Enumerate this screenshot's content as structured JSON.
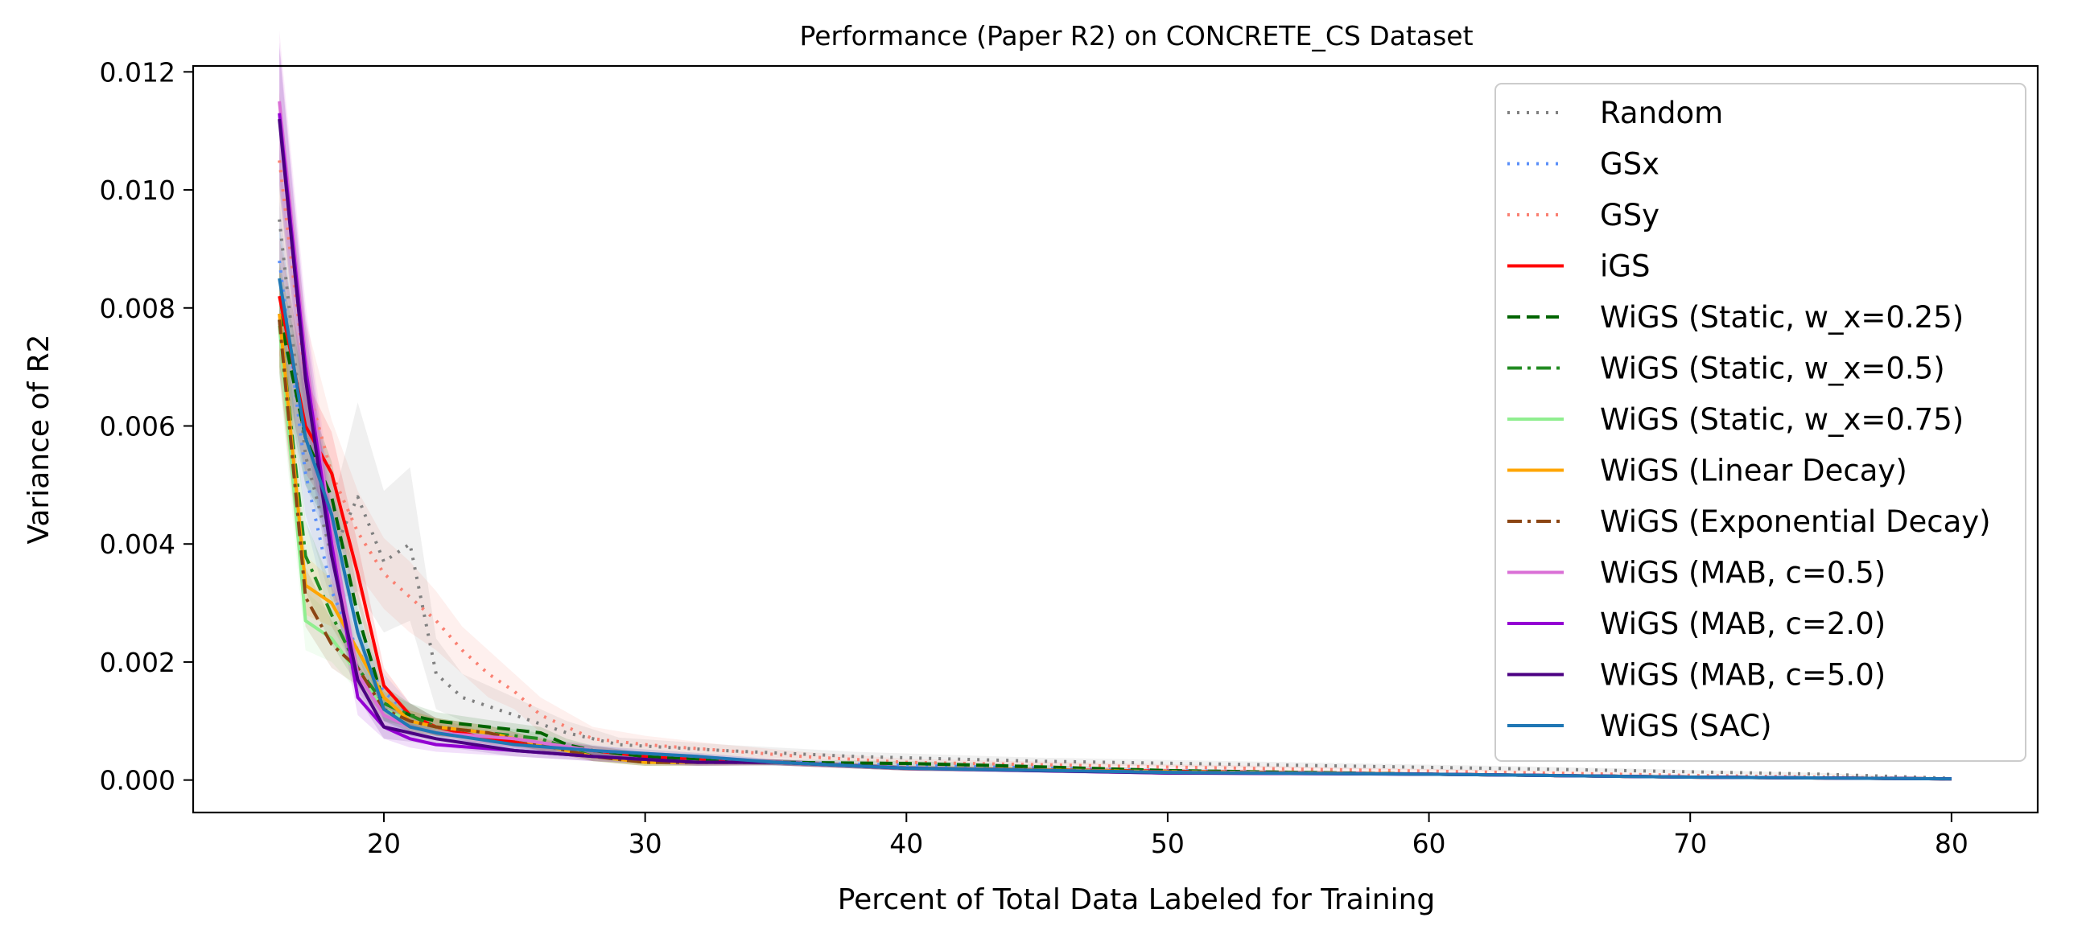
{
  "chart_data": {
    "type": "line",
    "title": "Performance (Paper R2) on CONCRETE_CS Dataset",
    "xlabel": "Percent of Total Data Labeled for Training",
    "ylabel": "Variance of R2",
    "xlim": [
      12.7,
      83.3
    ],
    "ylim": [
      -0.00055,
      0.0121
    ],
    "xticks": [
      20,
      30,
      40,
      50,
      60,
      70,
      80
    ],
    "yticks": [
      0.0,
      0.002,
      0.004,
      0.006,
      0.008,
      0.01,
      0.012
    ],
    "ytick_labels": [
      "0.000",
      "0.002",
      "0.004",
      "0.006",
      "0.008",
      "0.010",
      "0.012"
    ],
    "grid": false,
    "legend_position": "top-right",
    "shaded_bands": true,
    "series": [
      {
        "name": "Random",
        "color": "#808080",
        "dash": "dotted",
        "x": [
          16,
          17,
          18,
          19,
          20,
          21,
          22,
          23,
          25,
          27,
          29,
          33,
          38,
          45,
          55,
          65,
          75,
          80
        ],
        "y": [
          0.0095,
          0.0055,
          0.0038,
          0.0048,
          0.0037,
          0.004,
          0.0018,
          0.0014,
          0.0011,
          0.0008,
          0.0006,
          0.0005,
          0.0004,
          0.00032,
          0.00025,
          0.00018,
          0.0001,
          3e-05
        ],
        "band": [
          0.0012,
          0.001,
          0.0008,
          0.0016,
          0.0012,
          0.0013,
          0.0006,
          0.0004,
          0.0003,
          0.0002,
          0.00012,
          0.0001,
          8e-05,
          6e-05,
          5e-05,
          4e-05,
          2e-05,
          1e-05
        ]
      },
      {
        "name": "GSx",
        "color": "#5b8ff9",
        "dash": "dotted",
        "x": [
          16,
          17,
          18,
          19,
          20,
          21,
          22,
          24,
          26,
          28,
          30,
          35,
          40,
          50,
          60,
          70,
          80
        ],
        "y": [
          0.0088,
          0.0052,
          0.0032,
          0.0022,
          0.0015,
          0.0011,
          0.0009,
          0.0008,
          0.0006,
          0.0005,
          0.0004,
          0.0003,
          0.00025,
          0.00016,
          0.0001,
          5e-05,
          2e-05
        ],
        "band": [
          0.001,
          0.0008,
          0.0006,
          0.0004,
          0.0003,
          0.0002,
          0.00015,
          0.00012,
          0.0001,
          0.0001,
          8e-05,
          6e-05,
          5e-05,
          4e-05,
          3e-05,
          2e-05,
          1e-05
        ]
      },
      {
        "name": "GSy",
        "color": "#fa8072",
        "dash": "dotted",
        "x": [
          16,
          17,
          18,
          19,
          20,
          21,
          22,
          23,
          24,
          25,
          26,
          28,
          30,
          33,
          36,
          40,
          50,
          60,
          70,
          80
        ],
        "y": [
          0.0105,
          0.0068,
          0.0052,
          0.0042,
          0.0035,
          0.0031,
          0.0027,
          0.0022,
          0.0018,
          0.0015,
          0.0011,
          0.0007,
          0.0006,
          0.0005,
          0.0004,
          0.0003,
          0.00022,
          0.00015,
          8e-05,
          2e-05
        ],
        "band": [
          0.0012,
          0.001,
          0.0009,
          0.0007,
          0.0006,
          0.0006,
          0.0005,
          0.0004,
          0.0004,
          0.0003,
          0.0003,
          0.0002,
          0.00015,
          0.0001,
          8e-05,
          6e-05,
          5e-05,
          4e-05,
          2e-05,
          1e-05
        ]
      },
      {
        "name": "iGS",
        "color": "#ff0000",
        "dash": "solid",
        "x": [
          16,
          17,
          18,
          19,
          20,
          21,
          22,
          24,
          26,
          28,
          30,
          35,
          40,
          50,
          60,
          70,
          80
        ],
        "y": [
          0.0082,
          0.006,
          0.0052,
          0.0035,
          0.0016,
          0.0011,
          0.0009,
          0.0007,
          0.0006,
          0.0005,
          0.0004,
          0.0003,
          0.0002,
          0.00015,
          0.0001,
          5e-05,
          2e-05
        ],
        "band": [
          0.001,
          0.0008,
          0.0007,
          0.0005,
          0.0003,
          0.0002,
          0.00015,
          0.0001,
          0.0001,
          8e-05,
          6e-05,
          5e-05,
          4e-05,
          3e-05,
          2e-05,
          1e-05,
          1e-05
        ]
      },
      {
        "name": "WiGS (Static, w_x=0.25)",
        "color": "#006400",
        "dash": "dashed",
        "x": [
          16,
          17,
          18,
          19,
          20,
          21,
          22,
          24,
          26,
          27,
          28,
          30,
          35,
          40,
          43,
          50,
          60,
          70,
          80
        ],
        "y": [
          0.0079,
          0.0058,
          0.0048,
          0.0028,
          0.0013,
          0.0011,
          0.001,
          0.0009,
          0.0008,
          0.0006,
          0.0005,
          0.0004,
          0.0003,
          0.00028,
          0.00025,
          0.00016,
          0.0001,
          5e-05,
          2e-05
        ],
        "band": [
          0.0009,
          0.0008,
          0.0006,
          0.0004,
          0.0003,
          0.0002,
          0.00015,
          0.00012,
          0.0001,
          0.0001,
          8e-05,
          6e-05,
          5e-05,
          4e-05,
          4e-05,
          3e-05,
          2e-05,
          1e-05,
          1e-05
        ]
      },
      {
        "name": "WiGS (Static, w_x=0.5)",
        "color": "#228b22",
        "dash": "dashdot",
        "x": [
          16,
          17,
          18,
          19,
          20,
          21,
          22,
          24,
          26,
          28,
          30,
          35,
          40,
          50,
          60,
          70,
          80
        ],
        "y": [
          0.0078,
          0.0038,
          0.0028,
          0.0019,
          0.0013,
          0.0011,
          0.0009,
          0.0008,
          0.0007,
          0.0004,
          0.0003,
          0.0003,
          0.0002,
          0.00014,
          0.0001,
          5e-05,
          2e-05
        ],
        "band": [
          0.0009,
          0.0006,
          0.0005,
          0.0003,
          0.0002,
          0.0002,
          0.00015,
          0.00012,
          0.0001,
          8e-05,
          6e-05,
          5e-05,
          4e-05,
          3e-05,
          2e-05,
          1e-05,
          1e-05
        ]
      },
      {
        "name": "WiGS (Static, w_x=0.75)",
        "color": "#90ee90",
        "dash": "solid",
        "x": [
          16,
          17,
          18,
          19,
          20,
          21,
          22,
          24,
          26,
          28,
          30,
          35,
          40,
          50,
          60,
          70,
          80
        ],
        "y": [
          0.0077,
          0.0027,
          0.0024,
          0.0018,
          0.0012,
          0.001,
          0.0009,
          0.0008,
          0.0006,
          0.0004,
          0.0003,
          0.0003,
          0.0002,
          0.00014,
          0.0001,
          5e-05,
          2e-05
        ],
        "band": [
          0.0009,
          0.0005,
          0.0004,
          0.0003,
          0.0002,
          0.00018,
          0.00015,
          0.00012,
          0.0001,
          8e-05,
          6e-05,
          5e-05,
          4e-05,
          3e-05,
          2e-05,
          1e-05,
          1e-05
        ]
      },
      {
        "name": "WiGS (Linear Decay)",
        "color": "#ffa500",
        "dash": "solid",
        "x": [
          16,
          17,
          18,
          19,
          20,
          21,
          22,
          24,
          26,
          28,
          30,
          35,
          40,
          50,
          60,
          70,
          80
        ],
        "y": [
          0.0079,
          0.0033,
          0.003,
          0.0022,
          0.0014,
          0.001,
          0.0009,
          0.0008,
          0.0006,
          0.0004,
          0.0003,
          0.0003,
          0.0002,
          0.00014,
          0.0001,
          5e-05,
          2e-05
        ],
        "band": [
          0.0009,
          0.0005,
          0.0004,
          0.0003,
          0.0002,
          0.00018,
          0.00015,
          0.00012,
          0.0001,
          8e-05,
          6e-05,
          5e-05,
          4e-05,
          3e-05,
          2e-05,
          1e-05,
          1e-05
        ]
      },
      {
        "name": "WiGS (Exponential Decay)",
        "color": "#8b4513",
        "dash": "dashdot",
        "x": [
          16,
          17,
          18,
          19,
          20,
          21,
          22,
          24,
          26,
          28,
          30,
          35,
          40,
          50,
          60,
          70,
          80
        ],
        "y": [
          0.0078,
          0.0031,
          0.0023,
          0.0019,
          0.0012,
          0.001,
          0.0009,
          0.0008,
          0.0006,
          0.0004,
          0.0003,
          0.0003,
          0.0002,
          0.00014,
          0.0001,
          5e-05,
          2e-05
        ],
        "band": [
          0.0009,
          0.0005,
          0.0004,
          0.0003,
          0.0002,
          0.00018,
          0.00015,
          0.00012,
          0.0001,
          8e-05,
          6e-05,
          5e-05,
          4e-05,
          3e-05,
          2e-05,
          1e-05,
          1e-05
        ]
      },
      {
        "name": "WiGS (MAB, c=0.5)",
        "color": "#da70d6",
        "dash": "solid",
        "x": [
          16,
          17,
          18,
          19,
          20,
          21,
          22,
          25,
          28,
          32,
          35,
          40,
          50,
          60,
          70,
          80
        ],
        "y": [
          0.0115,
          0.0072,
          0.0042,
          0.0018,
          0.0011,
          0.0009,
          0.0008,
          0.0007,
          0.0005,
          0.0004,
          0.0003,
          0.0002,
          0.00013,
          0.0001,
          5e-05,
          2e-05
        ],
        "band": [
          0.0012,
          0.0009,
          0.0006,
          0.0003,
          0.0002,
          0.00015,
          0.00012,
          0.0001,
          8e-05,
          6e-05,
          5e-05,
          4e-05,
          3e-05,
          2e-05,
          1e-05,
          1e-05
        ]
      },
      {
        "name": "WiGS (MAB, c=2.0)",
        "color": "#9400d3",
        "dash": "solid",
        "x": [
          16,
          17,
          18,
          19,
          20,
          21,
          22,
          25,
          28,
          32,
          35,
          40,
          50,
          60,
          70,
          80
        ],
        "y": [
          0.0113,
          0.007,
          0.004,
          0.0014,
          0.0009,
          0.0007,
          0.0006,
          0.0005,
          0.0004,
          0.0003,
          0.0003,
          0.0002,
          0.00012,
          0.0001,
          5e-05,
          2e-05
        ],
        "band": [
          0.0012,
          0.0009,
          0.0006,
          0.0003,
          0.0002,
          0.00015,
          0.00012,
          0.0001,
          8e-05,
          6e-05,
          5e-05,
          4e-05,
          3e-05,
          2e-05,
          1e-05,
          1e-05
        ]
      },
      {
        "name": "WiGS (MAB, c=5.0)",
        "color": "#4b0082",
        "dash": "solid",
        "x": [
          16,
          17,
          18,
          19,
          20,
          21,
          22,
          25,
          28,
          32,
          35,
          40,
          50,
          60,
          70,
          80
        ],
        "y": [
          0.0112,
          0.0068,
          0.0038,
          0.0017,
          0.0009,
          0.0008,
          0.0007,
          0.0005,
          0.0004,
          0.0003,
          0.0003,
          0.0002,
          0.00012,
          0.0001,
          5e-05,
          2e-05
        ],
        "band": [
          0.0012,
          0.0009,
          0.0006,
          0.0003,
          0.0002,
          0.00015,
          0.00012,
          0.0001,
          8e-05,
          6e-05,
          5e-05,
          4e-05,
          3e-05,
          2e-05,
          1e-05,
          1e-05
        ]
      },
      {
        "name": "WiGS (SAC)",
        "color": "#1f77b4",
        "dash": "solid",
        "x": [
          16,
          17,
          18,
          19,
          20,
          21,
          22,
          25,
          28,
          32,
          35,
          40,
          50,
          60,
          70,
          80
        ],
        "y": [
          0.0085,
          0.0058,
          0.0045,
          0.0025,
          0.0012,
          0.0009,
          0.0008,
          0.0006,
          0.0005,
          0.0004,
          0.0003,
          0.0002,
          0.00013,
          0.0001,
          5e-05,
          2e-05
        ],
        "band": [
          0.0009,
          0.0008,
          0.0006,
          0.0004,
          0.0002,
          0.00015,
          0.00012,
          0.0001,
          8e-05,
          6e-05,
          5e-05,
          4e-05,
          3e-05,
          2e-05,
          1e-05,
          1e-05
        ]
      }
    ]
  }
}
